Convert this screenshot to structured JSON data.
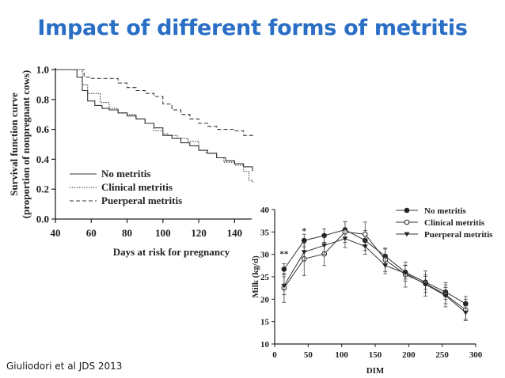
{
  "slide": {
    "title": "Impact of different forms of metritis",
    "citation": "Giuliodori et al JDS 2013"
  },
  "chart_data": [
    {
      "type": "line",
      "step": true,
      "xlabel": "Days at risk for pregnancy",
      "ylabel": [
        "Survival function curve",
        "(proportion of nonpregnant cows)"
      ],
      "xlim": [
        40,
        150
      ],
      "ylim": [
        0.0,
        1.0
      ],
      "xticks": [
        "40",
        "60",
        "80",
        "100",
        "120",
        "140"
      ],
      "yticks": [
        "0.0",
        "0.2",
        "0.4",
        "0.6",
        "0.8",
        "1.0"
      ],
      "legend_position": "bottom-left",
      "series": [
        {
          "name": "No metritis",
          "style": "solid",
          "x": [
            40,
            50,
            52,
            55,
            58,
            62,
            66,
            70,
            75,
            80,
            85,
            90,
            95,
            100,
            105,
            110,
            115,
            120,
            125,
            130,
            135,
            140,
            145,
            150
          ],
          "y": [
            1.0,
            1.0,
            0.95,
            0.86,
            0.79,
            0.76,
            0.74,
            0.73,
            0.71,
            0.69,
            0.67,
            0.64,
            0.61,
            0.56,
            0.54,
            0.51,
            0.49,
            0.46,
            0.44,
            0.41,
            0.39,
            0.37,
            0.35,
            0.32
          ]
        },
        {
          "name": "Clinical metritis",
          "style": "dotted",
          "x": [
            40,
            52,
            55,
            58,
            65,
            70,
            75,
            80,
            85,
            90,
            95,
            100,
            103,
            108,
            114,
            120,
            124,
            130,
            134,
            140,
            145,
            148,
            150
          ],
          "y": [
            1.0,
            1.0,
            0.9,
            0.84,
            0.78,
            0.74,
            0.71,
            0.7,
            0.67,
            0.64,
            0.59,
            0.57,
            0.56,
            0.54,
            0.52,
            0.46,
            0.44,
            0.41,
            0.38,
            0.36,
            0.32,
            0.26,
            0.24
          ]
        },
        {
          "name": "Puerperal metritis",
          "style": "dashed",
          "x": [
            40,
            53,
            56,
            60,
            70,
            75,
            80,
            85,
            90,
            95,
            100,
            105,
            110,
            115,
            120,
            125,
            130,
            135,
            140,
            145,
            150
          ],
          "y": [
            1.0,
            1.0,
            0.95,
            0.94,
            0.94,
            0.91,
            0.88,
            0.86,
            0.84,
            0.82,
            0.77,
            0.73,
            0.7,
            0.67,
            0.64,
            0.62,
            0.6,
            0.6,
            0.59,
            0.56,
            0.54
          ]
        }
      ]
    },
    {
      "type": "line",
      "xlabel": "DIM",
      "ylabel": "Milk (kg/d)",
      "xlim": [
        0,
        300
      ],
      "ylim": [
        10,
        40
      ],
      "xticks": [
        "0",
        "50",
        "100",
        "150",
        "200",
        "250",
        "300"
      ],
      "yticks": [
        "10",
        "15",
        "20",
        "25",
        "30",
        "35",
        "40"
      ],
      "legend_position": "top-right",
      "annotations": [
        {
          "text": "**",
          "x": 14,
          "y": 29.5
        },
        {
          "text": "*",
          "x": 44,
          "y": 34.6
        }
      ],
      "x": [
        14,
        44,
        74,
        105,
        135,
        165,
        195,
        225,
        255,
        285
      ],
      "series": [
        {
          "name": "No metritis",
          "marker": "filled-circle",
          "values": [
            26.7,
            33.1,
            34.2,
            35.5,
            33.1,
            29.6,
            26.0,
            23.8,
            21.6,
            19.0
          ],
          "errors": [
            1.2,
            1.4,
            1.5,
            1.8,
            2.2,
            1.6,
            1.5,
            1.6,
            1.6,
            1.6
          ]
        },
        {
          "name": "Clinical metritis",
          "marker": "open-circle",
          "values": [
            22.5,
            29.0,
            30.1,
            35.0,
            34.5,
            28.8,
            25.5,
            23.5,
            21.0,
            17.6
          ],
          "errors": [
            3.2,
            3.7,
            2.6,
            2.3,
            2.7,
            2.6,
            2.8,
            2.8,
            2.7,
            2.4
          ]
        },
        {
          "name": "Puerperal metritis",
          "marker": "filled-triangle-down",
          "values": [
            23.0,
            30.5,
            32.0,
            33.5,
            31.8,
            27.5,
            25.8,
            23.3,
            20.8,
            17.0
          ],
          "errors": [
            2.0,
            2.0,
            2.0,
            2.0,
            1.8,
            1.8,
            1.8,
            1.8,
            1.8,
            1.5
          ]
        }
      ]
    }
  ]
}
